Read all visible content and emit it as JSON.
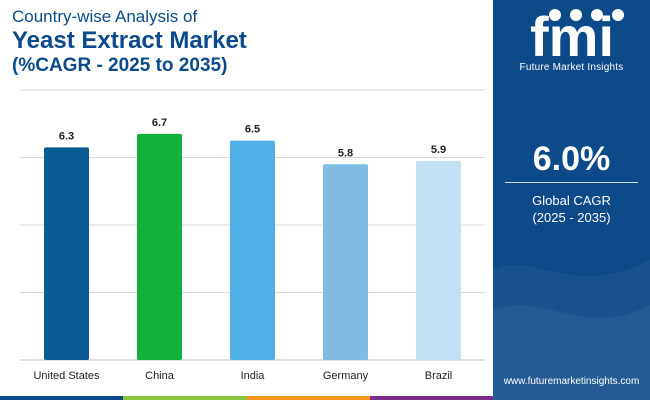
{
  "header": {
    "subtitle": "Country-wise Analysis of",
    "title": "Yeast Extract Market",
    "period": "(%CAGR - 2025 to 2035)"
  },
  "chart_data": {
    "type": "bar",
    "categories": [
      "United States",
      "China",
      "India",
      "Germany",
      "Brazil"
    ],
    "values": [
      6.3,
      6.7,
      6.5,
      5.8,
      5.9
    ],
    "data_labels": [
      "6.3",
      "6.7",
      "6.5",
      "5.8",
      "5.9"
    ],
    "colors": [
      "#0b5a93",
      "#12b13c",
      "#4eaee5",
      "#7fbbe2",
      "#c3e1f4"
    ],
    "ylim": [
      0,
      8
    ],
    "grid": true,
    "legend": "none",
    "title": "",
    "xlabel": "",
    "ylabel": ""
  },
  "sidebar": {
    "logo_text": "fmi",
    "brand": "Future Market Insights",
    "cagr_value": "6.0%",
    "cagr_label": "Global CAGR",
    "cagr_period": "(2025 - 2035)",
    "website": "www.futuremarketinsights.com",
    "panel_color": "#0d4a8a"
  },
  "bottom_strip_colors": [
    "#0d4a8a",
    "#8cc63f",
    "#f7941d",
    "#7b2d8e"
  ]
}
